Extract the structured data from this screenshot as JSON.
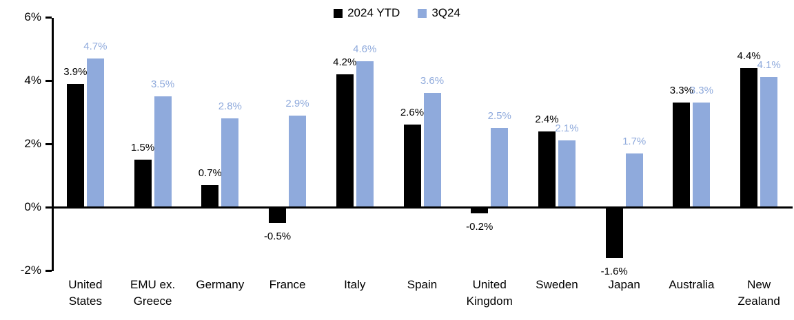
{
  "chart_data": {
    "type": "bar",
    "title": "",
    "xlabel": "",
    "ylabel": "",
    "ylim": [
      -2,
      6
    ],
    "grid": false,
    "legend_position": "top-center",
    "yticks": [
      {
        "label": "6%",
        "value": 6
      },
      {
        "label": "4%",
        "value": 4
      },
      {
        "label": "2%",
        "value": 2
      },
      {
        "label": "0%",
        "value": 0
      },
      {
        "label": "-2%",
        "value": -2
      }
    ],
    "categories": [
      "United\nStates",
      "EMU ex.\nGreece",
      "Germany",
      "France",
      "Italy",
      "Spain",
      "United\nKingdom",
      "Sweden",
      "Japan",
      "Australia",
      "New\nZealand"
    ],
    "series": [
      {
        "name": "2024 YTD",
        "color": "#000000",
        "label_color": "#000000",
        "values": [
          3.9,
          1.5,
          0.7,
          -0.5,
          4.2,
          2.6,
          -0.2,
          2.4,
          -1.6,
          3.3,
          4.4
        ],
        "labels": [
          "3.9%",
          "1.5%",
          "0.7%",
          "-0.5%",
          "4.2%",
          "2.6%",
          "-0.2%",
          "2.4%",
          "-1.6%",
          "3.3%",
          "4.4%"
        ]
      },
      {
        "name": "3Q24",
        "color": "#8FAADC",
        "label_color": "#8FAADC",
        "values": [
          4.7,
          3.5,
          2.8,
          2.9,
          4.6,
          3.6,
          2.5,
          2.1,
          1.7,
          3.3,
          4.1
        ],
        "labels": [
          "4.7%",
          "3.5%",
          "2.8%",
          "2.9%",
          "4.6%",
          "3.6%",
          "2.5%",
          "2.1%",
          "1.7%",
          "3.3%",
          "4.1%"
        ]
      }
    ]
  }
}
